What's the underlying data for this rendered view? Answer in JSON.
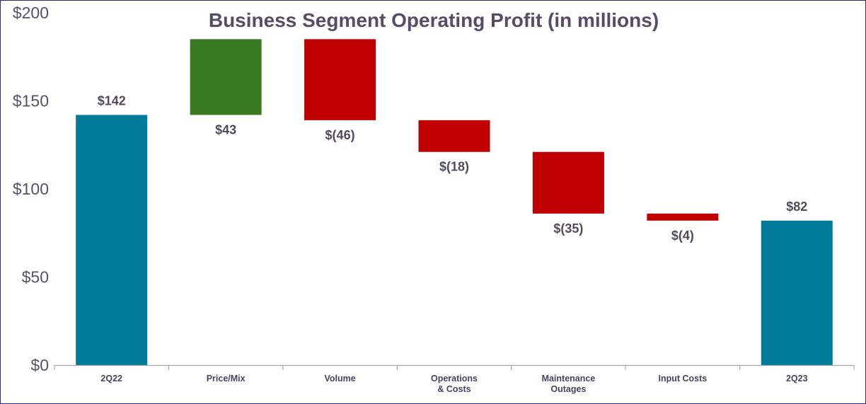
{
  "chart_data": {
    "type": "waterfall",
    "title": "Business Segment Operating Profit (in millions)",
    "xlabel": "",
    "ylabel": "",
    "ylim": [
      0,
      200
    ],
    "yticks": [
      0,
      50,
      100,
      150,
      200
    ],
    "ytick_labels": [
      "$0",
      "$50",
      "$100",
      "$150",
      "$200"
    ],
    "grid": false,
    "categories": [
      [
        "2Q22"
      ],
      [
        "Price/Mix"
      ],
      [
        "Volume"
      ],
      [
        "Operations",
        "& Costs"
      ],
      [
        "Maintenance",
        "Outages"
      ],
      [
        "Input Costs"
      ],
      [
        "2Q23"
      ]
    ],
    "kinds": [
      "total",
      "delta",
      "delta",
      "delta",
      "delta",
      "delta",
      "total"
    ],
    "values": [
      142,
      43,
      -46,
      -18,
      -35,
      -4,
      82
    ],
    "data_labels": [
      "$142",
      "$43",
      "$(46)",
      "$(18)",
      "$(35)",
      "$(4)",
      "$82"
    ],
    "colors": {
      "total": "#007b99",
      "increase": "#3a7a23",
      "decrease": "#c00000",
      "axis": "#a6a6a6"
    }
  }
}
